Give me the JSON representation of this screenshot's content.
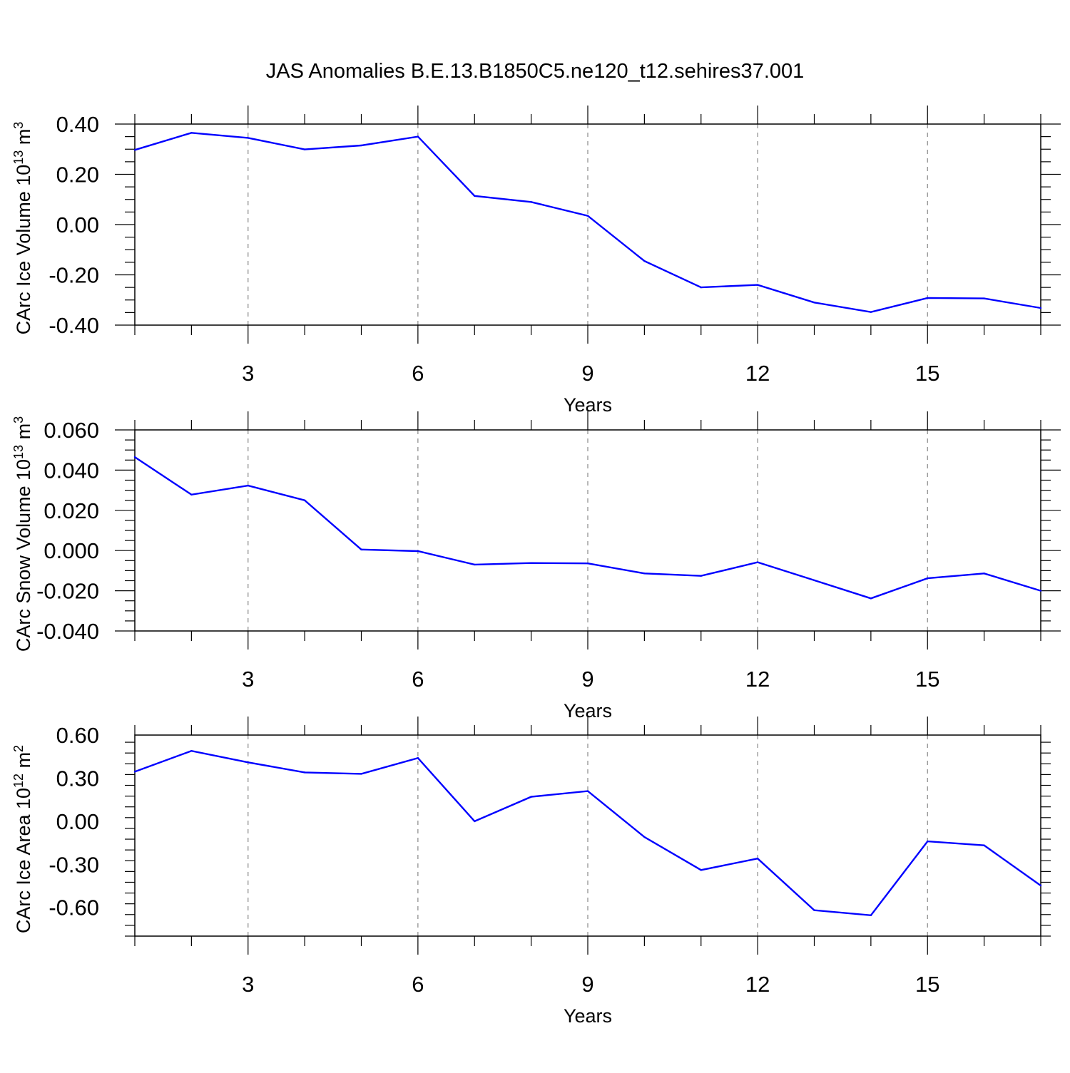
{
  "title": "JAS Anomalies B.E.13.B1850C5.ne120_t12.sehires37.001",
  "chart_data": [
    {
      "type": "line",
      "ylabel": "CArc Ice Volume 10",
      "ylabel_exp": "13",
      "ylabel_unit": "m",
      "ylabel_unit_exp": "3",
      "xlabel": "Years",
      "xlim": [
        1,
        17
      ],
      "ylim": [
        -0.4,
        0.4
      ],
      "yticks": [
        -0.4,
        -0.2,
        0.0,
        0.2,
        0.4
      ],
      "ytick_labels": [
        "-0.40",
        "-0.20",
        "0.00",
        "0.20",
        "0.40"
      ],
      "xticks": [
        3,
        6,
        9,
        12,
        15
      ],
      "xtick_labels": [
        "3",
        "6",
        "9",
        "12",
        "15"
      ],
      "grid": "vertical dashed at labeled x ticks",
      "line_color": "#0000ff",
      "x": [
        1,
        2,
        3,
        4,
        5,
        6,
        7,
        8,
        9,
        10,
        11,
        12,
        13,
        14,
        15,
        16,
        17
      ],
      "y": [
        0.297,
        0.365,
        0.345,
        0.299,
        0.315,
        0.35,
        0.114,
        0.09,
        0.035,
        -0.145,
        -0.25,
        -0.24,
        -0.31,
        -0.348,
        -0.292,
        -0.294,
        -0.332
      ]
    },
    {
      "type": "line",
      "ylabel": "CArc Snow Volume 10",
      "ylabel_exp": "13",
      "ylabel_unit": "m",
      "ylabel_unit_exp": "3",
      "xlabel": "Years",
      "xlim": [
        1,
        17
      ],
      "ylim": [
        -0.04,
        0.06
      ],
      "yticks": [
        -0.04,
        -0.02,
        0.0,
        0.02,
        0.04,
        0.06
      ],
      "ytick_labels": [
        "-0.040",
        "-0.020",
        "0.000",
        "0.020",
        "0.040",
        "0.060"
      ],
      "xticks": [
        3,
        6,
        9,
        12,
        15
      ],
      "xtick_labels": [
        "3",
        "6",
        "9",
        "12",
        "15"
      ],
      "grid": "vertical dashed at labeled x ticks",
      "line_color": "#0000ff",
      "x": [
        1,
        2,
        3,
        4,
        5,
        6,
        7,
        8,
        9,
        10,
        11,
        12,
        13,
        14,
        15,
        16,
        17
      ],
      "y": [
        0.0465,
        0.0278,
        0.0323,
        0.025,
        0.0005,
        -0.0003,
        -0.007,
        -0.0062,
        -0.0064,
        -0.0114,
        -0.0126,
        -0.0058,
        -0.0148,
        -0.0238,
        -0.0138,
        -0.0114,
        -0.02
      ]
    },
    {
      "type": "line",
      "ylabel": "CArc Ice Area 10",
      "ylabel_exp": "12",
      "ylabel_unit": "m",
      "ylabel_unit_exp": "2",
      "xlabel": "Years",
      "xlim": [
        1,
        17
      ],
      "ylim": [
        -0.8,
        0.6
      ],
      "yticks": [
        -0.6,
        -0.3,
        0.0,
        0.3,
        0.6
      ],
      "ytick_labels": [
        "-0.60",
        "-0.30",
        "0.00",
        "0.30",
        "0.60"
      ],
      "xticks": [
        3,
        6,
        9,
        12,
        15
      ],
      "xtick_labels": [
        "3",
        "6",
        "9",
        "12",
        "15"
      ],
      "grid": "vertical dashed at labeled x ticks",
      "line_color": "#0000ff",
      "x": [
        1,
        2,
        3,
        4,
        5,
        6,
        7,
        8,
        9,
        10,
        11,
        12,
        13,
        14,
        15,
        16,
        17
      ],
      "y": [
        0.345,
        0.49,
        0.41,
        0.34,
        0.33,
        0.44,
        0.0,
        0.17,
        0.21,
        -0.11,
        -0.34,
        -0.26,
        -0.62,
        -0.655,
        -0.14,
        -0.168,
        -0.448
      ]
    }
  ]
}
